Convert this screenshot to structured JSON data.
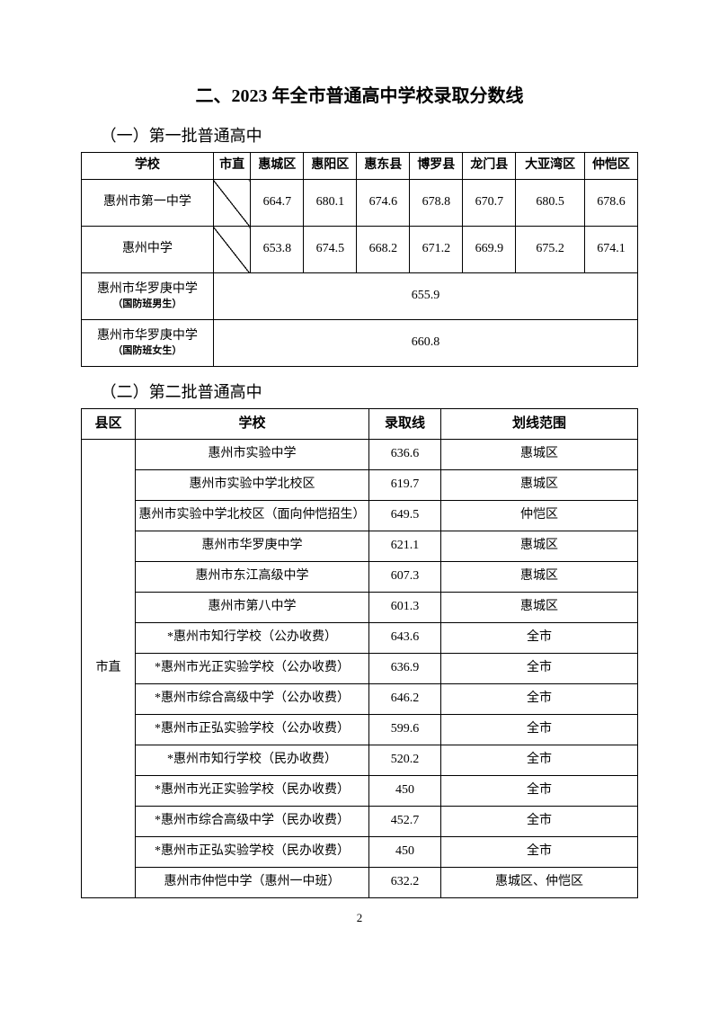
{
  "title": "二、2023 年全市普通高中学校录取分数线",
  "section1": {
    "heading": "（一）第一批普通高中",
    "headers": [
      "学校",
      "市直",
      "惠城区",
      "惠阳区",
      "惠东县",
      "博罗县",
      "龙门县",
      "大亚湾区",
      "仲恺区"
    ],
    "rows": [
      {
        "school": "惠州市第一中学",
        "sub": "",
        "diag": true,
        "scores": [
          "664.7",
          "680.1",
          "674.6",
          "678.8",
          "670.7",
          "680.5",
          "678.6"
        ],
        "merged": null
      },
      {
        "school": "惠州中学",
        "sub": "",
        "diag": true,
        "scores": [
          "653.8",
          "674.5",
          "668.2",
          "671.2",
          "669.9",
          "675.2",
          "674.1"
        ],
        "merged": null
      },
      {
        "school": "惠州市华罗庚中学",
        "sub": "（国防班男生）",
        "diag": false,
        "scores": null,
        "merged": "655.9"
      },
      {
        "school": "惠州市华罗庚中学",
        "sub": "（国防班女生）",
        "diag": false,
        "scores": null,
        "merged": "660.8"
      }
    ]
  },
  "section2": {
    "heading": "（二）第二批普通高中",
    "headers": [
      "县区",
      "学校",
      "录取线",
      "划线范围"
    ],
    "county": "市直",
    "rows": [
      {
        "school": "惠州市实验中学",
        "score": "636.6",
        "scope": "惠城区"
      },
      {
        "school": "惠州市实验中学北校区",
        "score": "619.7",
        "scope": "惠城区"
      },
      {
        "school": "惠州市实验中学北校区（面向仲恺招生）",
        "score": "649.5",
        "scope": "仲恺区"
      },
      {
        "school": "惠州市华罗庚中学",
        "score": "621.1",
        "scope": "惠城区"
      },
      {
        "school": "惠州市东江高级中学",
        "score": "607.3",
        "scope": "惠城区"
      },
      {
        "school": "惠州市第八中学",
        "score": "601.3",
        "scope": "惠城区"
      },
      {
        "school": "*惠州市知行学校（公办收费）",
        "score": "643.6",
        "scope": "全市"
      },
      {
        "school": "*惠州市光正实验学校（公办收费）",
        "score": "636.9",
        "scope": "全市"
      },
      {
        "school": "*惠州市综合高级中学（公办收费）",
        "score": "646.2",
        "scope": "全市"
      },
      {
        "school": "*惠州市正弘实验学校（公办收费）",
        "score": "599.6",
        "scope": "全市"
      },
      {
        "school": "*惠州市知行学校（民办收费）",
        "score": "520.2",
        "scope": "全市"
      },
      {
        "school": "*惠州市光正实验学校（民办收费）",
        "score": "450",
        "scope": "全市"
      },
      {
        "school": "*惠州市综合高级中学（民办收费）",
        "score": "452.7",
        "scope": "全市"
      },
      {
        "school": "*惠州市正弘实验学校（民办收费）",
        "score": "450",
        "scope": "全市"
      },
      {
        "school": "惠州市仲恺中学（惠州一中班）",
        "score": "632.2",
        "scope": "惠城区、仲恺区"
      }
    ]
  },
  "pageNumber": "2"
}
